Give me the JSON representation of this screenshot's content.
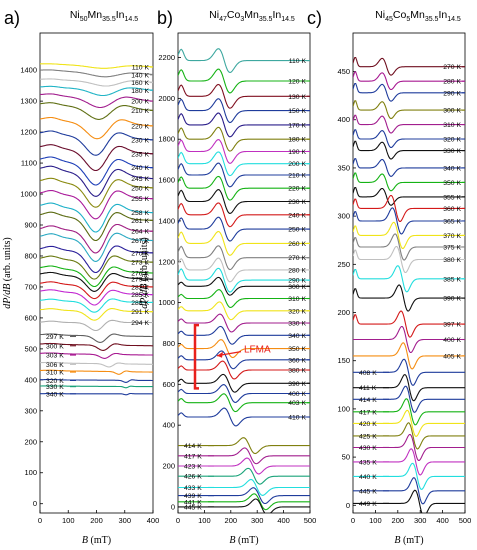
{
  "chart_data": [
    {
      "type": "line",
      "panel_letter": "a)",
      "title": {
        "parts": [
          [
            "Ni",
            ""
          ],
          [
            "50",
            "s"
          ],
          [
            "Mn",
            ""
          ],
          [
            "35.5",
            "s"
          ],
          [
            "In",
            ""
          ],
          [
            "14.5",
            "s"
          ]
        ]
      },
      "xlabel": "B (mT)",
      "ylabel": "dP/dB (arb. units)",
      "xlim": [
        0,
        400
      ],
      "ylim": [
        -30,
        1520
      ],
      "xticks": [
        0,
        100,
        200,
        300,
        400
      ],
      "yticks": [
        0,
        100,
        200,
        300,
        400,
        500,
        600,
        700,
        800,
        900,
        1000,
        1100,
        1200,
        1300,
        1400
      ],
      "series": [
        {
          "name": "110 K",
          "x0": 1420,
          "x1": 1410,
          "xmin": 225,
          "ymin": 0,
          "amp": 0.1,
          "width": 130,
          "side": "right",
          "color": "#f0e41a"
        },
        {
          "name": "140 K",
          "x0": 1400,
          "x1": 1385,
          "xmin": 230,
          "ymin": 0,
          "amp": 0.15,
          "width": 125,
          "side": "right",
          "color": "#808080"
        },
        {
          "name": "160 K",
          "x0": 1370,
          "x1": 1360,
          "xmin": 235,
          "ymin": 0,
          "amp": 0.18,
          "width": 120,
          "side": "right",
          "color": "#c0c0c0"
        },
        {
          "name": "180 K",
          "x0": 1345,
          "x1": 1335,
          "xmin": 225,
          "ymin": 0,
          "amp": 0.25,
          "width": 115,
          "side": "right",
          "color": "#21b4c6"
        },
        {
          "name": "200 K",
          "x0": 1320,
          "x1": 1300,
          "xmin": 215,
          "ymin": 0,
          "amp": 0.35,
          "width": 110,
          "side": "right",
          "color": "#a21e8e"
        },
        {
          "name": "210 K",
          "x0": 1290,
          "x1": 1270,
          "xmin": 210,
          "ymin": 0,
          "amp": 0.45,
          "width": 105,
          "side": "right",
          "color": "#607015"
        },
        {
          "name": "220 K",
          "x0": 1240,
          "x1": 1220,
          "xmin": 205,
          "ymin": 0,
          "amp": 0.6,
          "width": 100,
          "side": "right",
          "color": "#f58d12"
        },
        {
          "name": "230 K",
          "x0": 1195,
          "x1": 1175,
          "xmin": 200,
          "ymin": 0,
          "amp": 0.7,
          "width": 95,
          "side": "right",
          "color": "#1f3c9c"
        },
        {
          "name": "235 K",
          "x0": 1150,
          "x1": 1130,
          "xmin": 200,
          "ymin": 0,
          "amp": 0.75,
          "width": 95,
          "side": "right",
          "color": "#6b0e2d"
        },
        {
          "name": "240 K",
          "x0": 1110,
          "x1": 1085,
          "xmin": 200,
          "ymin": 0,
          "amp": 0.8,
          "width": 92,
          "side": "right",
          "color": "#1e3fb8"
        },
        {
          "name": "245 K",
          "x0": 1080,
          "x1": 1050,
          "xmin": 200,
          "ymin": 0,
          "amp": 0.85,
          "width": 90,
          "side": "right",
          "color": "#2a1d8a"
        },
        {
          "name": "250 K",
          "x0": 1040,
          "x1": 1020,
          "xmin": 200,
          "ymin": 0,
          "amp": 0.85,
          "width": 90,
          "side": "right",
          "color": "#8a8a10"
        },
        {
          "name": "255 K",
          "x0": 1000,
          "x1": 985,
          "xmin": 200,
          "ymin": 0,
          "amp": 0.85,
          "width": 88,
          "side": "right",
          "color": "#aa1a9a"
        },
        {
          "name": "258 K",
          "x0": 960,
          "x1": 940,
          "xmin": 200,
          "ymin": 0,
          "amp": 0.85,
          "width": 86,
          "side": "right",
          "color": "#1db0c8"
        },
        {
          "name": "261 K",
          "x0": 930,
          "x1": 915,
          "xmin": 200,
          "ymin": 0,
          "amp": 0.85,
          "width": 85,
          "side": "right",
          "color": "#5a6a10"
        },
        {
          "name": "264 K",
          "x0": 885,
          "x1": 880,
          "xmin": 200,
          "ymin": 0,
          "amp": 0.85,
          "width": 85,
          "side": "right",
          "color": "#a01e82"
        },
        {
          "name": "267 K",
          "x0": 860,
          "x1": 850,
          "xmin": 200,
          "ymin": 0,
          "amp": 0.85,
          "width": 84,
          "side": "right",
          "color": "#2aa9c2"
        },
        {
          "name": "270 K",
          "x0": 820,
          "x1": 810,
          "xmin": 200,
          "ymin": 0,
          "amp": 0.8,
          "width": 83,
          "side": "right",
          "color": "#2a1f9a"
        },
        {
          "name": "273 K",
          "x0": 790,
          "x1": 780,
          "xmin": 195,
          "ymin": 0,
          "amp": 0.7,
          "width": 80,
          "side": "right",
          "color": "#6a7a12"
        },
        {
          "name": "276 K",
          "x0": 760,
          "x1": 745,
          "xmin": 195,
          "ymin": 0,
          "amp": 0.6,
          "width": 78,
          "side": "right",
          "color": "#15b315"
        },
        {
          "name": "279 K",
          "x0": 740,
          "x1": 725,
          "xmin": 195,
          "ymin": 0,
          "amp": 0.55,
          "width": 76,
          "side": "right",
          "color": "#111111"
        },
        {
          "name": "282 K",
          "x0": 710,
          "x1": 700,
          "xmin": 195,
          "ymin": 0,
          "amp": 0.5,
          "width": 75,
          "side": "right",
          "color": "#d41a1a"
        },
        {
          "name": "285 K",
          "x0": 685,
          "x1": 675,
          "xmin": 195,
          "ymin": 0,
          "amp": 0.45,
          "width": 74,
          "side": "right",
          "color": "#c32ad2"
        },
        {
          "name": "288 K",
          "x0": 655,
          "x1": 650,
          "xmin": 195,
          "ymin": 0,
          "amp": 0.4,
          "width": 72,
          "side": "right",
          "color": "#22dede"
        },
        {
          "name": "291 K",
          "x0": 625,
          "x1": 620,
          "xmin": 195,
          "ymin": 0,
          "amp": 0.35,
          "width": 70,
          "side": "right",
          "color": "#f0e41a"
        },
        {
          "name": "294 K",
          "x0": 585,
          "x1": 585,
          "xmin": 200,
          "ymin": 0,
          "amp": 0.3,
          "width": 65,
          "side": "right",
          "color": "#b0b0b0"
        },
        {
          "name": "297 K",
          "x0": 545,
          "x1": 540,
          "xmin": 215,
          "ymin": 0,
          "amp": 0.25,
          "width": 55,
          "side": "left",
          "color": "#606060"
        },
        {
          "name": "300 K",
          "x0": 515,
          "x1": 510,
          "xmin": 225,
          "ymin": 0,
          "amp": 0.2,
          "width": 50,
          "side": "left",
          "color": "#701020"
        },
        {
          "name": "303 K",
          "x0": 485,
          "x1": 480,
          "xmin": 230,
          "ymin": 0,
          "amp": 0.15,
          "width": 45,
          "side": "left",
          "color": "#a81a92"
        },
        {
          "name": "306 K",
          "x0": 455,
          "x1": 450,
          "xmin": 245,
          "ymin": 0,
          "amp": 0.12,
          "width": 40,
          "side": "left",
          "color": "#c0c0c0"
        },
        {
          "name": "310 K",
          "x0": 430,
          "x1": 425,
          "xmin": 280,
          "ymin": 0,
          "amp": 0.1,
          "width": 30,
          "side": "left",
          "color": "#f58d12"
        },
        {
          "name": "320 K",
          "x0": 400,
          "x1": 398,
          "xmin": 305,
          "ymin": 0,
          "amp": 0.08,
          "width": 25,
          "side": "left",
          "color": "#1f3c9c"
        },
        {
          "name": "330 K",
          "x0": 380,
          "x1": 378,
          "xmin": 305,
          "ymin": 0,
          "amp": 0.05,
          "width": 20,
          "side": "left",
          "color": "#1aa37a"
        },
        {
          "name": "340 K",
          "x0": 355,
          "x1": 355,
          "xmin": 305,
          "ymin": 0,
          "amp": 0.04,
          "width": 18,
          "side": "left",
          "color": "#1f3c9c"
        }
      ]
    },
    {
      "type": "line",
      "panel_letter": "b)",
      "title": {
        "parts": [
          [
            "Ni",
            ""
          ],
          [
            "47",
            "s"
          ],
          [
            "Co",
            ""
          ],
          [
            "3",
            "s"
          ],
          [
            "Mn",
            ""
          ],
          [
            "35.5",
            "s"
          ],
          [
            "In",
            ""
          ],
          [
            "14.5",
            "s"
          ]
        ]
      },
      "xlabel": "B (mT)",
      "ylabel": "dP/dB (arb. units)",
      "xlim": [
        0,
        500
      ],
      "ylim": [
        -30,
        2320
      ],
      "xticks": [
        0,
        100,
        200,
        300,
        400,
        500
      ],
      "yticks": [
        0,
        200,
        400,
        600,
        800,
        1000,
        1200,
        1400,
        1600,
        1800,
        2000,
        2200
      ],
      "annotation": {
        "text": "LFMA"
      },
      "series": [
        {
          "name": "110 K",
          "y": 2185,
          "color": "#3ea8a0"
        },
        {
          "name": "120 K",
          "y": 2085,
          "color": "#15b315"
        },
        {
          "name": "130 K",
          "y": 2010,
          "color": "#801020"
        },
        {
          "name": "150 K",
          "y": 1940,
          "color": "#1f3c9c"
        },
        {
          "name": "170 K",
          "y": 1870,
          "color": "#2a1d8a"
        },
        {
          "name": "180 K",
          "y": 1800,
          "color": "#808010"
        },
        {
          "name": "190 K",
          "y": 1740,
          "color": "#c030c0"
        },
        {
          "name": "200 K",
          "y": 1680,
          "color": "#22dede"
        },
        {
          "name": "210 K",
          "y": 1625,
          "color": "#1f3c9c"
        },
        {
          "name": "220 K",
          "y": 1560,
          "color": "#15b315"
        },
        {
          "name": "230 K",
          "y": 1495,
          "color": "#101010"
        },
        {
          "name": "240 K",
          "y": 1430,
          "color": "#d41a1a"
        },
        {
          "name": "250 K",
          "y": 1360,
          "color": "#1f3c9c"
        },
        {
          "name": "260 K",
          "y": 1290,
          "color": "#f0e41a"
        },
        {
          "name": "270 K",
          "y": 1220,
          "color": "#808080"
        },
        {
          "name": "280 K",
          "y": 1160,
          "color": "#c0c0c0"
        },
        {
          "name": "290 K",
          "y": 1110,
          "color": "#22dede"
        },
        {
          "name": "300 K",
          "y": 1080,
          "color": "#101010"
        },
        {
          "name": "310 K",
          "y": 1020,
          "color": "#15b315"
        },
        {
          "name": "320 K",
          "y": 960,
          "color": "#f0e41a"
        },
        {
          "name": "330 K",
          "y": 900,
          "color": "#a21e8e"
        },
        {
          "name": "340 K",
          "y": 840,
          "color": "#1f3c9c"
        },
        {
          "name": "350 K",
          "y": 775,
          "color": "#f58d12"
        },
        {
          "name": "360 K",
          "y": 720,
          "color": "#1f3c9c"
        },
        {
          "name": "380 K",
          "y": 670,
          "color": "#d41a1a"
        },
        {
          "name": "390 K",
          "y": 605,
          "color": "#101010"
        },
        {
          "name": "400 K",
          "y": 555,
          "color": "#1f3c9c"
        },
        {
          "name": "403 K",
          "y": 510,
          "color": "#15b315"
        },
        {
          "name": "410 K",
          "y": 440,
          "color": "#1f3c9c"
        },
        {
          "name": "414 K",
          "y": 300,
          "color": "#808010"
        },
        {
          "name": "417 K",
          "y": 250,
          "color": "#a21e8e"
        },
        {
          "name": "423 K",
          "y": 200,
          "color": "#c030c0"
        },
        {
          "name": "426 K",
          "y": 150,
          "color": "#1aa37a"
        },
        {
          "name": "433 K",
          "y": 95,
          "color": "#22dede"
        },
        {
          "name": "439 K",
          "y": 55,
          "color": "#1f3c9c"
        },
        {
          "name": "441 K",
          "y": 25,
          "color": "#15b315"
        },
        {
          "name": "445 K",
          "y": 0,
          "color": "#101010"
        }
      ]
    },
    {
      "type": "line",
      "panel_letter": "c)",
      "title": {
        "parts": [
          [
            "Ni",
            ""
          ],
          [
            "45",
            "s"
          ],
          [
            "Co",
            ""
          ],
          [
            "5",
            "s"
          ],
          [
            "Mn",
            ""
          ],
          [
            "35.5",
            "s"
          ],
          [
            "In",
            ""
          ],
          [
            "14.5",
            "s"
          ]
        ]
      },
      "xlabel": "B (mT)",
      "ylabel": "",
      "xlim": [
        0,
        500
      ],
      "ylim": [
        -8,
        490
      ],
      "xticks": [
        0,
        100,
        200,
        300,
        400,
        500
      ],
      "yticks": [
        0,
        50,
        100,
        150,
        200,
        250,
        300,
        350,
        400,
        450
      ],
      "series": [
        {
          "name": "270 K",
          "y": 455,
          "color": "#701020"
        },
        {
          "name": "280 K",
          "y": 440,
          "color": "#a81a92"
        },
        {
          "name": "290 K",
          "y": 428,
          "color": "#1f3c9c"
        },
        {
          "name": "300 K",
          "y": 410,
          "color": "#808010"
        },
        {
          "name": "310 K",
          "y": 395,
          "color": "#a21e8e"
        },
        {
          "name": "320 K",
          "y": 380,
          "color": "#1f3c9c"
        },
        {
          "name": "330 K",
          "y": 368,
          "color": "#101010"
        },
        {
          "name": "340 K",
          "y": 350,
          "color": "#1f3c9c"
        },
        {
          "name": "350 K",
          "y": 335,
          "color": "#15b315"
        },
        {
          "name": "355 K",
          "y": 320,
          "color": "#101010"
        },
        {
          "name": "360 K",
          "y": 308,
          "color": "#d41a1a"
        },
        {
          "name": "365 K",
          "y": 295,
          "color": "#1f3c9c"
        },
        {
          "name": "370 K",
          "y": 280,
          "color": "#f0e41a"
        },
        {
          "name": "375 K",
          "y": 268,
          "color": "#808080"
        },
        {
          "name": "380 K",
          "y": 255,
          "color": "#c0c0c0"
        },
        {
          "name": "385 K",
          "y": 235,
          "color": "#22dede"
        },
        {
          "name": "390 K",
          "y": 215,
          "color": "#101010"
        },
        {
          "name": "397 K",
          "y": 188,
          "color": "#d41a1a"
        },
        {
          "name": "400 K",
          "y": 172,
          "color": "#a21e8e"
        },
        {
          "name": "405 K",
          "y": 155,
          "color": "#f58d12"
        },
        {
          "name": "408 K",
          "y": 138,
          "color": "#1f3c9c"
        },
        {
          "name": "411 K",
          "y": 122,
          "color": "#101010"
        },
        {
          "name": "414 K",
          "y": 110,
          "color": "#1f3c9c"
        },
        {
          "name": "417 K",
          "y": 97,
          "color": "#15b315"
        },
        {
          "name": "420 K",
          "y": 85,
          "color": "#f0e41a"
        },
        {
          "name": "425 K",
          "y": 72,
          "color": "#808010"
        },
        {
          "name": "430 K",
          "y": 60,
          "color": "#a21e8e"
        },
        {
          "name": "435 K",
          "y": 45,
          "color": "#c030c0"
        },
        {
          "name": "440 K",
          "y": 30,
          "color": "#22dede"
        },
        {
          "name": "445 K",
          "y": 15,
          "color": "#1f3c9c"
        },
        {
          "name": "449 K",
          "y": 2,
          "color": "#101010"
        }
      ]
    }
  ]
}
